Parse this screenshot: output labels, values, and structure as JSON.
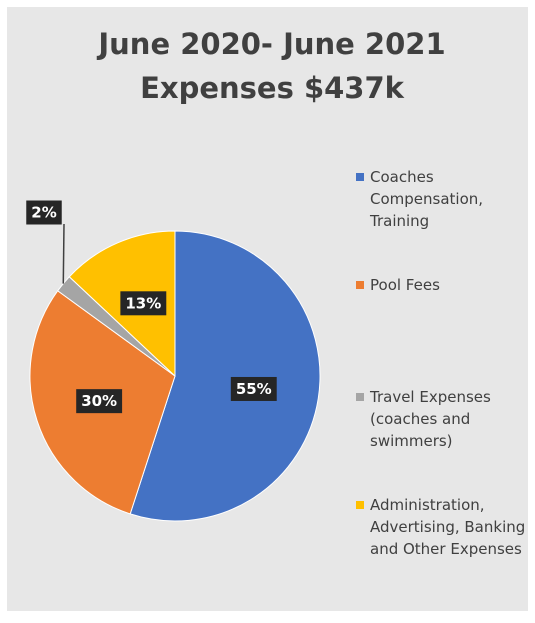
{
  "chart_data": {
    "type": "pie",
    "title": [
      "June 2020- June 2021",
      "Expenses $437k"
    ],
    "categories": [
      "Coaches Compensation, Training",
      "Pool Fees",
      "Travel Expenses (coaches and swimmers)",
      "Administration, Advertising, Banking and Other Expenses"
    ],
    "values": [
      55,
      30,
      2,
      13
    ],
    "value_labels": [
      "55%",
      "30%",
      "2%",
      "13%"
    ],
    "colors": [
      "#4472c4",
      "#ed7d31",
      "#a5a5a5",
      "#ffc000"
    ],
    "legend": "right"
  }
}
